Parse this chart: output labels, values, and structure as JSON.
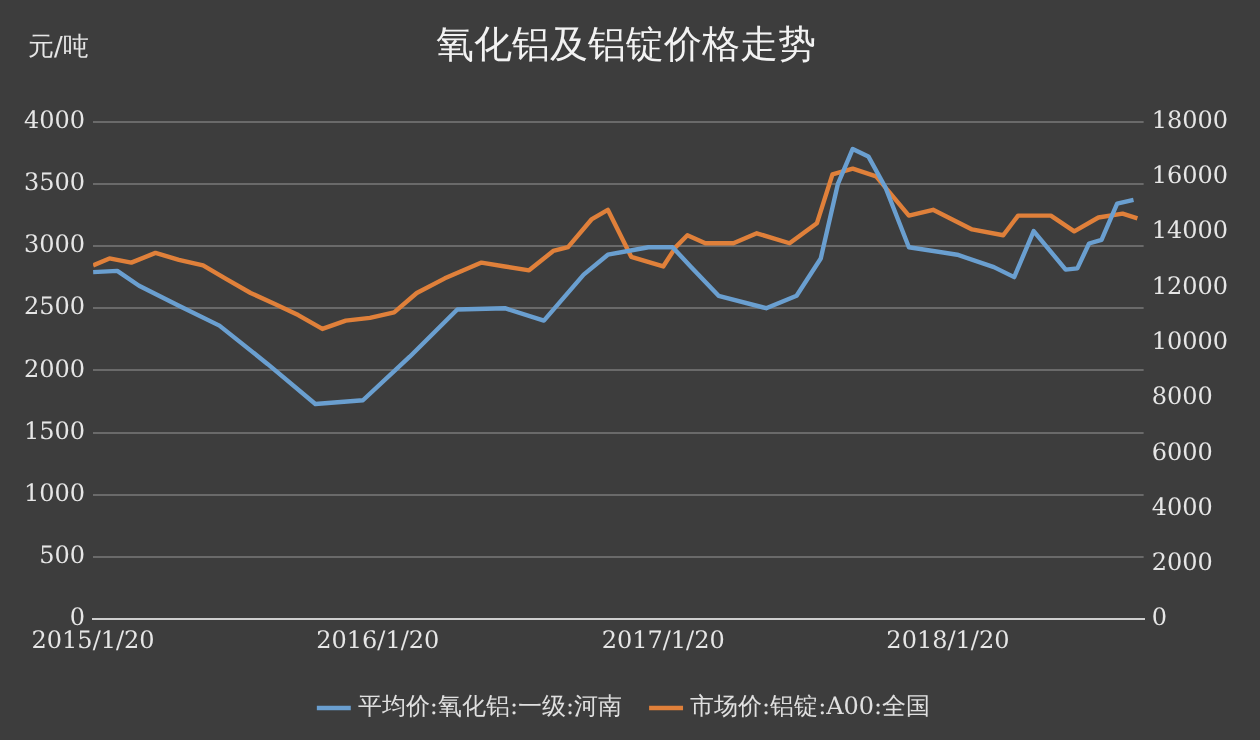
{
  "chart_data": {
    "type": "line",
    "title": "氧化铝及铝锭价格走势",
    "ylabel": "元/吨",
    "xlim": [
      "2015-01-20",
      "2018-09-28"
    ],
    "xticks": [
      {
        "value": "2015-01-20",
        "label": "2015/1/20"
      },
      {
        "value": "2016-01-20",
        "label": "2016/1/20"
      },
      {
        "value": "2017-01-20",
        "label": "2017/1/20"
      },
      {
        "value": "2018-01-20",
        "label": "2018/1/20"
      }
    ],
    "ylim": [
      0,
      4000
    ],
    "yticks": [
      0,
      500,
      1000,
      1500,
      2000,
      2500,
      3000,
      3500,
      4000
    ],
    "y2lim": [
      0,
      18000
    ],
    "y2ticks": [
      0,
      2000,
      4000,
      6000,
      8000,
      10000,
      12000,
      14000,
      16000,
      18000
    ],
    "grid": "y",
    "legend": "bottom",
    "marker": "none",
    "line_style": "solid",
    "series": [
      {
        "name": "平均价:氧化铝:一级:河南",
        "color": "#6a9fd0",
        "x": [
          "2015-01-20",
          "2015-02-20",
          "2015-03-20",
          "2015-05-10",
          "2015-07-01",
          "2015-09-01",
          "2015-11-01",
          "2016-01-01",
          "2016-03-01",
          "2016-05-01",
          "2016-07-01",
          "2016-08-20",
          "2016-10-10",
          "2016-11-10",
          "2017-01-01",
          "2017-02-01",
          "2017-02-25",
          "2017-04-01",
          "2017-06-01",
          "2017-07-10",
          "2017-08-10",
          "2017-09-01",
          "2017-09-20",
          "2017-10-10",
          "2017-11-01",
          "2017-12-01",
          "2018-02-01",
          "2018-03-20",
          "2018-04-15",
          "2018-05-10",
          "2018-06-20",
          "2018-07-05",
          "2018-07-20",
          "2018-08-05",
          "2018-08-25",
          "2018-09-15"
        ],
        "values": [
          2790,
          2800,
          2680,
          2520,
          2360,
          2050,
          1730,
          1760,
          2110,
          2490,
          2500,
          2400,
          2770,
          2930,
          2990,
          2990,
          2830,
          2600,
          2500,
          2600,
          2900,
          3500,
          3780,
          3720,
          3470,
          2990,
          2930,
          2830,
          2750,
          3120,
          2810,
          2820,
          3020,
          3050,
          3340,
          3370
        ]
      },
      {
        "name": "市场价:铝锭:A00:全国",
        "color": "#e0803a",
        "axis": "y2",
        "x": [
          "2015-01-20",
          "2015-02-10",
          "2015-03-10",
          "2015-04-10",
          "2015-05-10",
          "2015-06-10",
          "2015-07-10",
          "2015-08-10",
          "2015-09-10",
          "2015-10-10",
          "2015-11-10",
          "2015-12-10",
          "2016-01-10",
          "2016-02-10",
          "2016-03-10",
          "2016-04-15",
          "2016-06-01",
          "2016-07-01",
          "2016-08-01",
          "2016-09-01",
          "2016-09-20",
          "2016-10-20",
          "2016-11-10",
          "2016-12-10",
          "2017-01-20",
          "2017-02-05",
          "2017-02-20",
          "2017-03-15",
          "2017-04-20",
          "2017-05-20",
          "2017-07-01",
          "2017-08-05",
          "2017-08-25",
          "2017-09-20",
          "2017-10-20",
          "2017-12-01",
          "2018-01-01",
          "2018-02-20",
          "2018-04-01",
          "2018-04-20",
          "2018-06-01",
          "2018-07-01",
          "2018-08-01",
          "2018-09-01",
          "2018-09-20"
        ],
        "values": [
          12800,
          13050,
          12900,
          13250,
          13000,
          12800,
          12300,
          11800,
          11400,
          11000,
          10500,
          10800,
          10900,
          11100,
          11800,
          12330,
          12900,
          12760,
          12620,
          13320,
          13460,
          14460,
          14810,
          13110,
          12760,
          13460,
          13890,
          13600,
          13600,
          13960,
          13600,
          14320,
          16090,
          16300,
          16020,
          14600,
          14810,
          14100,
          13890,
          14600,
          14600,
          14030,
          14530,
          14670,
          14500
        ]
      }
    ]
  }
}
